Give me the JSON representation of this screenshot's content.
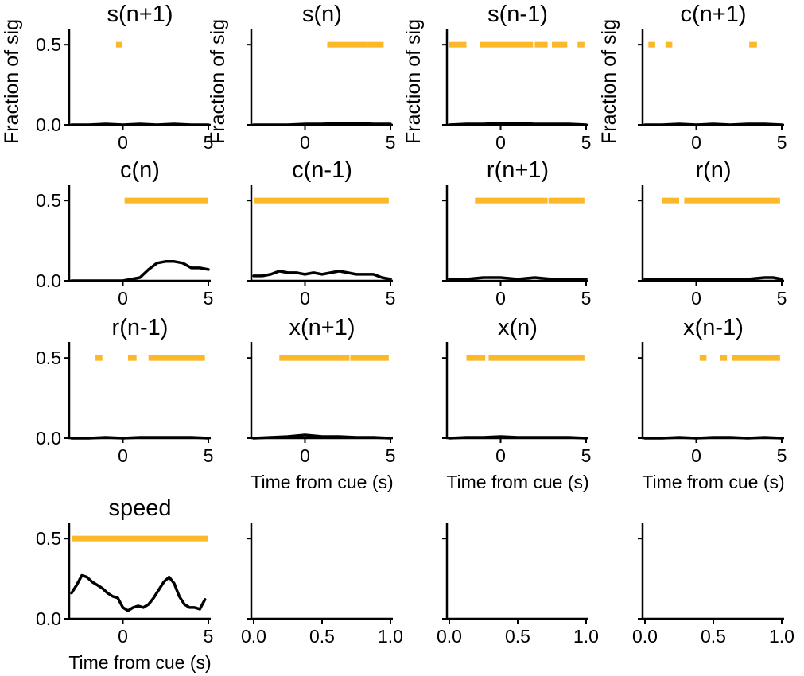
{
  "chart_data": {
    "type": "line",
    "layout": "4x4 grid of small-multiple line plots",
    "ylabel": "Fraction of sig",
    "xlabel": "Time from cue (s)",
    "significance_color": "#FBB829",
    "line_color": "#000000",
    "panels": [
      {
        "title": "s(n+1)",
        "xlim": [
          -3,
          5
        ],
        "ylim": [
          0,
          0.6
        ],
        "xticks": [
          0,
          5
        ],
        "xticklabels": [
          "0",
          "5"
        ],
        "yticks": [
          0,
          0.5
        ],
        "yticklabels": [
          "0.0",
          "0.5"
        ],
        "ylabel": "Fraction of sig",
        "xlabel": "",
        "sig_level": 0.5,
        "sig_intervals": [
          [
            -0.4,
            -0.05
          ]
        ],
        "x": [
          -3,
          -2,
          -1,
          0,
          1,
          2,
          3,
          4,
          5
        ],
        "y": [
          0,
          0,
          0.005,
          0,
          0.005,
          0,
          0.005,
          0,
          0
        ]
      },
      {
        "title": "s(n)",
        "xlim": [
          -3,
          5
        ],
        "ylim": [
          0,
          0.6
        ],
        "xticks": [
          0,
          5
        ],
        "xticklabels": [
          "0",
          "5"
        ],
        "yticks": [
          0,
          0.5
        ],
        "yticklabels": [
          "",
          ""
        ],
        "ylabel": "Fraction of sig",
        "xlabel": "",
        "sig_level": 0.5,
        "sig_intervals": [
          [
            1.3,
            3.6
          ],
          [
            3.65,
            4.6
          ]
        ],
        "x": [
          -3,
          -2,
          -1,
          0,
          1,
          2,
          3,
          4,
          5
        ],
        "y": [
          0,
          0,
          0,
          0.005,
          0.005,
          0.01,
          0.01,
          0.005,
          0.005
        ]
      },
      {
        "title": "s(n-1)",
        "xlim": [
          -3,
          5
        ],
        "ylim": [
          0,
          0.6
        ],
        "xticks": [
          0,
          5
        ],
        "xticklabels": [
          "0",
          "5"
        ],
        "yticks": [
          0,
          0.5
        ],
        "yticklabels": [
          "",
          ""
        ],
        "ylabel": "Fraction of sig",
        "xlabel": "",
        "sig_level": 0.5,
        "sig_intervals": [
          [
            -3,
            -2
          ],
          [
            -1.2,
            1.9
          ],
          [
            2.0,
            2.75
          ],
          [
            3.0,
            3.9
          ],
          [
            4.5,
            4.9
          ]
        ],
        "x": [
          -3,
          -2,
          -1,
          0,
          1,
          2,
          3,
          4,
          5
        ],
        "y": [
          0,
          0.005,
          0.005,
          0.01,
          0.01,
          0.005,
          0.005,
          0.005,
          0
        ]
      },
      {
        "title": "c(n+1)",
        "xlim": [
          -3,
          5
        ],
        "ylim": [
          0,
          0.6
        ],
        "xticks": [
          0,
          5
        ],
        "xticklabels": [
          "0",
          "5"
        ],
        "yticks": [
          0,
          0.5
        ],
        "yticklabels": [
          "",
          ""
        ],
        "ylabel": "Fraction of sig",
        "xlabel": "",
        "sig_level": 0.5,
        "sig_intervals": [
          [
            -2.8,
            -2.4
          ],
          [
            -1.8,
            -1.4
          ],
          [
            3.1,
            3.55
          ]
        ],
        "x": [
          -3,
          -2,
          -1,
          0,
          1,
          2,
          3,
          4,
          5
        ],
        "y": [
          0,
          0,
          0.005,
          0,
          0.005,
          0,
          0.005,
          0.005,
          0
        ]
      },
      {
        "title": "c(n)",
        "xlim": [
          -3,
          5
        ],
        "ylim": [
          0,
          0.6
        ],
        "xticks": [
          0,
          5
        ],
        "xticklabels": [
          "0",
          "5"
        ],
        "yticks": [
          0,
          0.5
        ],
        "yticklabels": [
          "0.0",
          "0.5"
        ],
        "ylabel": "",
        "xlabel": "",
        "sig_level": 0.5,
        "sig_intervals": [
          [
            0.1,
            5
          ]
        ],
        "x": [
          -3,
          -2,
          -1,
          0,
          0.5,
          1,
          1.5,
          2,
          2.5,
          3,
          3.5,
          4,
          4.5,
          5
        ],
        "y": [
          0,
          0,
          0,
          0,
          0.01,
          0.02,
          0.07,
          0.11,
          0.12,
          0.12,
          0.11,
          0.08,
          0.08,
          0.07
        ]
      },
      {
        "title": "c(n-1)",
        "xlim": [
          -3,
          5
        ],
        "ylim": [
          0,
          0.6
        ],
        "xticks": [
          0,
          5
        ],
        "xticklabels": [
          "0",
          "5"
        ],
        "yticks": [
          0,
          0.5
        ],
        "yticklabels": [
          "",
          ""
        ],
        "ylabel": "",
        "xlabel": "",
        "sig_level": 0.5,
        "sig_intervals": [
          [
            -3,
            4.9
          ]
        ],
        "x": [
          -3,
          -2.5,
          -2,
          -1.5,
          -1,
          -0.5,
          0,
          0.5,
          1,
          1.5,
          2,
          2.5,
          3,
          3.5,
          4,
          4.5,
          5
        ],
        "y": [
          0.03,
          0.03,
          0.04,
          0.06,
          0.05,
          0.05,
          0.04,
          0.05,
          0.04,
          0.05,
          0.06,
          0.05,
          0.04,
          0.04,
          0.04,
          0.02,
          0.01
        ]
      },
      {
        "title": "r(n+1)",
        "xlim": [
          -3,
          5
        ],
        "ylim": [
          0,
          0.6
        ],
        "xticks": [
          0,
          5
        ],
        "xticklabels": [
          "0",
          "5"
        ],
        "yticks": [
          0,
          0.5
        ],
        "yticklabels": [
          "",
          ""
        ],
        "ylabel": "",
        "xlabel": "",
        "sig_level": 0.5,
        "sig_intervals": [
          [
            -1.5,
            2.75
          ],
          [
            2.8,
            4.9
          ]
        ],
        "x": [
          -3,
          -2,
          -1,
          0,
          1,
          2,
          3,
          4,
          5
        ],
        "y": [
          0.01,
          0.01,
          0.02,
          0.02,
          0.01,
          0.02,
          0.01,
          0.01,
          0.01
        ]
      },
      {
        "title": "r(n)",
        "xlim": [
          -3,
          5
        ],
        "ylim": [
          0,
          0.6
        ],
        "xticks": [
          0,
          5
        ],
        "xticklabels": [
          "0",
          "5"
        ],
        "yticks": [
          0,
          0.5
        ],
        "yticklabels": [
          "",
          ""
        ],
        "ylabel": "",
        "xlabel": "",
        "sig_level": 0.5,
        "sig_intervals": [
          [
            -2,
            -1
          ],
          [
            -0.7,
            4.9
          ]
        ],
        "x": [
          -3,
          -2,
          -1,
          0,
          1,
          2,
          3,
          4,
          4.5,
          5
        ],
        "y": [
          0.01,
          0.01,
          0.01,
          0.01,
          0.01,
          0.01,
          0.01,
          0.02,
          0.02,
          0.01
        ]
      },
      {
        "title": "r(n-1)",
        "xlim": [
          -3,
          5
        ],
        "ylim": [
          0,
          0.6
        ],
        "xticks": [
          0,
          5
        ],
        "xticklabels": [
          "0",
          "5"
        ],
        "yticks": [
          0,
          0.5
        ],
        "yticklabels": [
          "0.0",
          "0.5"
        ],
        "ylabel": "",
        "xlabel": "",
        "sig_level": 0.5,
        "sig_intervals": [
          [
            -1.6,
            -1.2
          ],
          [
            0.3,
            0.8
          ],
          [
            1.5,
            4.8
          ]
        ],
        "x": [
          -3,
          -2,
          -1,
          0,
          1,
          2,
          3,
          4,
          5
        ],
        "y": [
          0,
          0,
          0.005,
          0,
          0.005,
          0.005,
          0.005,
          0.005,
          0
        ]
      },
      {
        "title": "x(n+1)",
        "xlim": [
          -3,
          5
        ],
        "ylim": [
          0,
          0.6
        ],
        "xticks": [
          0,
          5
        ],
        "xticklabels": [
          "0",
          "5"
        ],
        "yticks": [
          0,
          0.5
        ],
        "yticklabels": [
          "",
          ""
        ],
        "ylabel": "",
        "xlabel": "Time from cue (s)",
        "sig_level": 0.5,
        "sig_intervals": [
          [
            -1.5,
            2.6
          ],
          [
            2.65,
            4.9
          ]
        ],
        "x": [
          -3,
          -2,
          -1,
          0,
          1,
          2,
          3,
          4,
          5
        ],
        "y": [
          0,
          0.005,
          0.01,
          0.02,
          0.01,
          0.01,
          0.005,
          0.005,
          0
        ]
      },
      {
        "title": "x(n)",
        "xlim": [
          -3,
          5
        ],
        "ylim": [
          0,
          0.6
        ],
        "xticks": [
          0,
          5
        ],
        "xticklabels": [
          "0",
          "5"
        ],
        "yticks": [
          0,
          0.5
        ],
        "yticklabels": [
          "",
          ""
        ],
        "ylabel": "",
        "xlabel": "Time from cue (s)",
        "sig_level": 0.5,
        "sig_intervals": [
          [
            -2,
            -0.9
          ],
          [
            -0.7,
            4.9
          ]
        ],
        "x": [
          -3,
          -2,
          -1,
          0,
          1,
          2,
          3,
          4,
          5
        ],
        "y": [
          0,
          0.005,
          0.005,
          0.01,
          0.005,
          0.005,
          0.005,
          0.005,
          0
        ]
      },
      {
        "title": "x(n-1)",
        "xlim": [
          -3,
          5
        ],
        "ylim": [
          0,
          0.6
        ],
        "xticks": [
          0,
          5
        ],
        "xticklabels": [
          "0",
          "5"
        ],
        "yticks": [
          0,
          0.5
        ],
        "yticklabels": [
          "",
          ""
        ],
        "ylabel": "",
        "xlabel": "Time from cue (s)",
        "sig_level": 0.5,
        "sig_intervals": [
          [
            0.2,
            0.6
          ],
          [
            1.4,
            1.8
          ],
          [
            2.1,
            4.9
          ]
        ],
        "x": [
          -3,
          -2,
          -1,
          0,
          1,
          2,
          3,
          4,
          5
        ],
        "y": [
          0,
          0,
          0.005,
          0,
          0.005,
          0.005,
          0,
          0.005,
          0
        ]
      },
      {
        "title": "speed",
        "xlim": [
          -3,
          5
        ],
        "ylim": [
          0,
          0.6
        ],
        "xticks": [
          0,
          5
        ],
        "xticklabels": [
          "0",
          "5"
        ],
        "yticks": [
          0,
          0.5
        ],
        "yticklabels": [
          "0.0",
          "0.5"
        ],
        "ylabel": "",
        "xlabel": "Time from cue (s)",
        "sig_level": 0.5,
        "sig_intervals": [
          [
            -3,
            5
          ]
        ],
        "x": [
          -3,
          -2.7,
          -2.4,
          -2.1,
          -1.8,
          -1.5,
          -1.2,
          -0.9,
          -0.6,
          -0.3,
          0,
          0.3,
          0.6,
          0.9,
          1.2,
          1.5,
          1.8,
          2.1,
          2.4,
          2.7,
          3.0,
          3.3,
          3.6,
          3.9,
          4.2,
          4.5,
          4.8
        ],
        "y": [
          0.16,
          0.21,
          0.27,
          0.26,
          0.23,
          0.21,
          0.19,
          0.16,
          0.14,
          0.13,
          0.07,
          0.05,
          0.07,
          0.08,
          0.07,
          0.09,
          0.13,
          0.18,
          0.23,
          0.26,
          0.22,
          0.14,
          0.09,
          0.07,
          0.07,
          0.06,
          0.12
        ]
      },
      {
        "title": "",
        "xlim": [
          0,
          1
        ],
        "ylim": [
          0,
          0.6
        ],
        "xticks": [
          0,
          0.5,
          1
        ],
        "xticklabels": [
          "0.0",
          "0.5",
          "1.0"
        ],
        "yticks": [
          0,
          0.5
        ],
        "yticklabels": [
          "",
          ""
        ],
        "ylabel": "",
        "xlabel": "",
        "sig_intervals": [],
        "x": [],
        "y": []
      },
      {
        "title": "",
        "xlim": [
          0,
          1
        ],
        "ylim": [
          0,
          0.6
        ],
        "xticks": [
          0,
          0.5,
          1
        ],
        "xticklabels": [
          "0.0",
          "0.5",
          "1.0"
        ],
        "yticks": [
          0,
          0.5
        ],
        "yticklabels": [
          "",
          ""
        ],
        "ylabel": "",
        "xlabel": "",
        "sig_intervals": [],
        "x": [],
        "y": []
      },
      {
        "title": "",
        "xlim": [
          0,
          1
        ],
        "ylim": [
          0,
          0.6
        ],
        "xticks": [
          0,
          0.5,
          1
        ],
        "xticklabels": [
          "0.0",
          "0.5",
          "1.0"
        ],
        "yticks": [
          0,
          0.5
        ],
        "yticklabels": [
          "",
          ""
        ],
        "ylabel": "",
        "xlabel": "",
        "sig_intervals": [],
        "x": [],
        "y": []
      }
    ]
  }
}
